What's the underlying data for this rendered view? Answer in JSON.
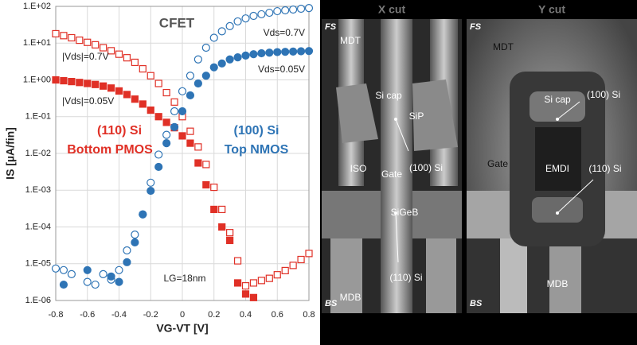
{
  "chart_data": {
    "type": "scatter",
    "log_y": true,
    "grid": true,
    "title": "CFET",
    "x_label": "VG-VT [V]",
    "y_label": "IS [µA/fin]",
    "annotations": [
      {
        "text": "(110) Si",
        "color": "#e03026"
      },
      {
        "text": "Bottom PMOS",
        "color": "#e03026"
      },
      {
        "text": "(100) Si",
        "color": "#2e74b5"
      },
      {
        "text": "Top NMOS",
        "color": "#2e74b5"
      },
      {
        "text": "LG=18nm",
        "color": "#222222"
      }
    ],
    "xlim": [
      -0.8,
      0.8
    ],
    "xticks": [
      -0.8,
      -0.6,
      -0.4,
      -0.2,
      0,
      0.2,
      0.4,
      0.6,
      0.8
    ],
    "ylim": [
      1e-06,
      100
    ],
    "yticks": [
      {
        "value": 100,
        "label": "1.E+02"
      },
      {
        "value": 10,
        "label": "1.E+01"
      },
      {
        "value": 1,
        "label": "1.E+00"
      },
      {
        "value": 0.1,
        "label": "1.E-01"
      },
      {
        "value": 0.01,
        "label": "1.E-02"
      },
      {
        "value": 0.001,
        "label": "1.E-03"
      },
      {
        "value": 0.0001,
        "label": "1.E-04"
      },
      {
        "value": 1e-05,
        "label": "1.E-05"
      },
      {
        "value": 1e-06,
        "label": "1.E-06"
      }
    ],
    "series": [
      {
        "name": "|Vds|=0.7V",
        "color": "#e03026",
        "marker": "square",
        "filled": false,
        "x": [
          -0.8,
          -0.75,
          -0.7,
          -0.65,
          -0.6,
          -0.55,
          -0.5,
          -0.45,
          -0.4,
          -0.35,
          -0.3,
          -0.25,
          -0.2,
          -0.15,
          -0.1,
          -0.05,
          0,
          0.05,
          0.1,
          0.15,
          0.2,
          0.25,
          0.3,
          0.35,
          0.4,
          0.45,
          0.5,
          0.55,
          0.6,
          0.65,
          0.7,
          0.75,
          0.8
        ],
        "values": [
          18,
          16,
          14,
          12,
          10.5,
          9,
          7.5,
          6.2,
          5,
          4,
          3,
          2,
          1.3,
          0.8,
          0.45,
          0.25,
          0.1,
          0.04,
          0.015,
          0.005,
          0.0012,
          0.0003,
          7e-05,
          1.2e-05,
          2.5e-06,
          3e-06,
          3.5e-06,
          4e-06,
          5e-06,
          6.5e-06,
          9e-06,
          1.3e-05,
          1.9e-05
        ]
      },
      {
        "name": "|Vds|=0.05V",
        "color": "#e03026",
        "marker": "square",
        "filled": true,
        "x": [
          -0.8,
          -0.75,
          -0.7,
          -0.65,
          -0.6,
          -0.55,
          -0.5,
          -0.45,
          -0.4,
          -0.35,
          -0.3,
          -0.25,
          -0.2,
          -0.15,
          -0.1,
          -0.05,
          0,
          0.05,
          0.1,
          0.15,
          0.2,
          0.25,
          0.3,
          0.35,
          0.4,
          0.45
        ],
        "values": [
          1,
          0.95,
          0.9,
          0.85,
          0.8,
          0.75,
          0.68,
          0.6,
          0.5,
          0.4,
          0.3,
          0.22,
          0.15,
          0.1,
          0.07,
          0.05,
          0.03,
          0.019,
          0.0055,
          0.0014,
          0.0003,
          0.0001,
          4.3e-05,
          3e-06,
          1.5e-06,
          1.2e-06
        ]
      },
      {
        "name": "Vds=0.7V",
        "color": "#2e74b5",
        "marker": "circle",
        "filled": false,
        "x": [
          -0.8,
          -0.75,
          -0.7,
          -0.6,
          -0.55,
          -0.5,
          -0.45,
          -0.4,
          -0.35,
          -0.3,
          -0.25,
          -0.2,
          -0.15,
          -0.1,
          -0.05,
          0,
          0.05,
          0.1,
          0.15,
          0.2,
          0.25,
          0.3,
          0.35,
          0.4,
          0.45,
          0.5,
          0.55,
          0.6,
          0.65,
          0.7,
          0.75,
          0.8
        ],
        "values": [
          7.4e-06,
          6.7e-06,
          5.2e-06,
          3.2e-06,
          2.7e-06,
          5.2e-06,
          3.7e-06,
          6.7e-06,
          2.3e-05,
          6.2e-05,
          0.00022,
          0.0016,
          0.0093,
          0.032,
          0.14,
          0.49,
          1.3,
          3.6,
          7.5,
          14,
          21,
          29,
          39,
          47,
          55,
          61,
          67,
          74,
          78,
          82,
          86,
          90
        ]
      },
      {
        "name": "Vds=0.05V",
        "color": "#2e74b5",
        "marker": "circle",
        "filled": true,
        "x": [
          -0.75,
          -0.6,
          -0.45,
          -0.4,
          -0.35,
          -0.3,
          -0.25,
          -0.2,
          -0.15,
          -0.1,
          -0.05,
          0,
          0.05,
          0.1,
          0.15,
          0.2,
          0.25,
          0.3,
          0.35,
          0.4,
          0.45,
          0.5,
          0.55,
          0.6,
          0.65,
          0.7,
          0.75,
          0.8
        ],
        "values": [
          2.7e-06,
          6.7e-06,
          4.5e-06,
          3.2e-06,
          1.1e-05,
          3.8e-05,
          0.00022,
          0.00096,
          0.0043,
          0.019,
          0.052,
          0.14,
          0.38,
          0.8,
          1.3,
          2.2,
          2.8,
          3.6,
          4.1,
          4.6,
          5,
          5.3,
          5.5,
          5.7,
          5.8,
          5.9,
          6,
          6.1
        ]
      }
    ]
  },
  "images": {
    "x_cut": {
      "title": "X cut",
      "labels": [
        "FS",
        "MDT",
        "Si cap",
        "SiP",
        "ISO",
        "Gate",
        "(100) Si",
        "SiGeB",
        "(110) Si",
        "BS",
        "MDB"
      ]
    },
    "y_cut": {
      "title": "Y cut",
      "labels": [
        "FS",
        "MDT",
        "Si cap",
        "(100) Si",
        "Gate",
        "EMDI",
        "(110) Si",
        "BS",
        "MDB"
      ]
    }
  }
}
